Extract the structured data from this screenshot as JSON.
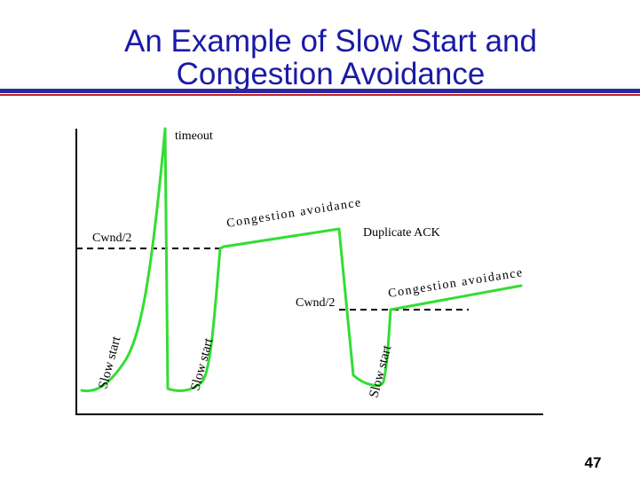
{
  "slide": {
    "title_line1": "An Example of Slow Start and",
    "title_line2": "Congestion Avoidance",
    "page_number": "47"
  },
  "colors": {
    "title": "#1a1aa6",
    "rule_blue": "#2a2aa0",
    "rule_red": "#c4202a",
    "curve": "#33dd33",
    "axis": "#000000"
  },
  "diagram": {
    "labels": {
      "timeout": "timeout",
      "cwnd_half_1": "Cwnd/2",
      "cwnd_half_2": "Cwnd/2",
      "congestion_avoidance_1": "Congestion avoidance",
      "congestion_avoidance_2": "Congestion avoidance",
      "duplicate_ack": "Duplicate ACK",
      "slow_start_1": "Slow start",
      "slow_start_2": "Slow start",
      "slow_start_3": "Slow start"
    }
  }
}
